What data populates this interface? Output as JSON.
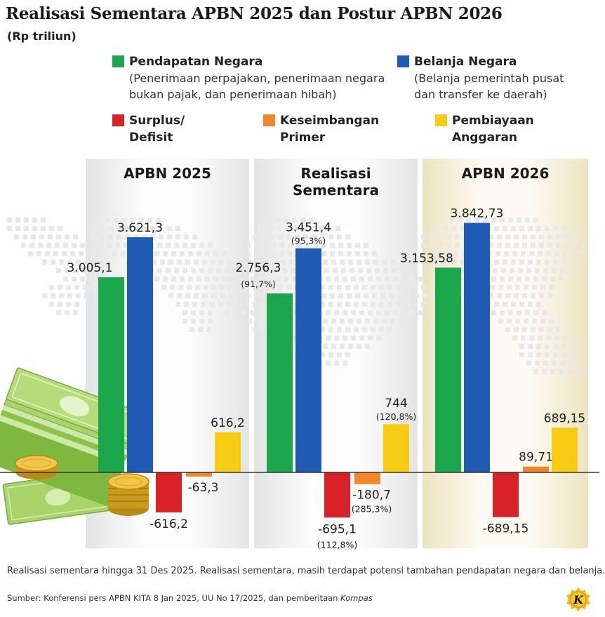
{
  "title": "Realisasi Sementara APBN 2025 dan Postur APBN 2026",
  "unit": "(Rp triliun)",
  "legend": [
    {
      "name": "Pendapatan Negara",
      "desc": "(Penerimaan perpajakan, penerimaan negara\nbukan pajak, dan penerimaan hibah)",
      "color": "#1aa64b"
    },
    {
      "name": "Belanja Negara",
      "desc": "(Belanja pemerintah pusat\ndan transfer ke daerah)",
      "color": "#1f5bb5"
    },
    {
      "name": "Surplus/\nDefisit",
      "desc": "",
      "color": "#d92128"
    },
    {
      "name": "Keseimbangan\nPrimer",
      "desc": "",
      "color": "#f0882a"
    },
    {
      "name": "Pembiayaan\nAnggaran",
      "desc": "",
      "color": "#f7cd13"
    }
  ],
  "panels": [
    "APBN 2025",
    "Realisasi\nSementara",
    "APBN 2026"
  ],
  "chart_data": {
    "type": "bar",
    "categories": [
      "APBN 2025",
      "Realisasi Sementara",
      "APBN 2026"
    ],
    "series": [
      {
        "name": "Pendapatan Negara",
        "color": "#1aa64b",
        "values": [
          3005.1,
          2756.3,
          3153.58
        ],
        "labels": [
          "3.005,1",
          "2.756,3",
          "3.153,58"
        ],
        "notes": [
          "",
          "(91,7%)",
          ""
        ]
      },
      {
        "name": "Belanja Negara",
        "color": "#1f5bb5",
        "values": [
          3621.3,
          3451.4,
          3842.73
        ],
        "labels": [
          "3.621,3",
          "3.451,4",
          "3.842,73"
        ],
        "notes": [
          "",
          "(95,3%)",
          ""
        ]
      },
      {
        "name": "Surplus/Defisit",
        "color": "#d92128",
        "values": [
          -616.2,
          -695.1,
          -689.15
        ],
        "labels": [
          "-616,2",
          "-695,1",
          "-689,15"
        ],
        "notes": [
          "",
          "(112,8%)",
          ""
        ]
      },
      {
        "name": "Keseimbangan Primer",
        "color": "#f0882a",
        "values": [
          -63.3,
          -180.7,
          89.71
        ],
        "labels": [
          "-63,3",
          "-180,7",
          "89,71"
        ],
        "notes": [
          "",
          "(285,3%)",
          ""
        ]
      },
      {
        "name": "Pembiayaan Anggaran",
        "color": "#f7cd13",
        "values": [
          616.2,
          744,
          689.15
        ],
        "labels": [
          "616,2",
          "744",
          "689,15"
        ],
        "notes": [
          "",
          "(120,8%)",
          ""
        ]
      }
    ]
  },
  "footnote": "Realisasi sementara hingga 31 Des 2025. Realisasi sementara, masih terdapat potensi tambahan pendapatan negara dan belanja.",
  "source_prefix": "Sumber: Konferensi pers APBN KITA 8 Jan 2025, UU No 17/2025, dan pemberitaan ",
  "source_italic": "Kompas",
  "logo_letter": "K"
}
